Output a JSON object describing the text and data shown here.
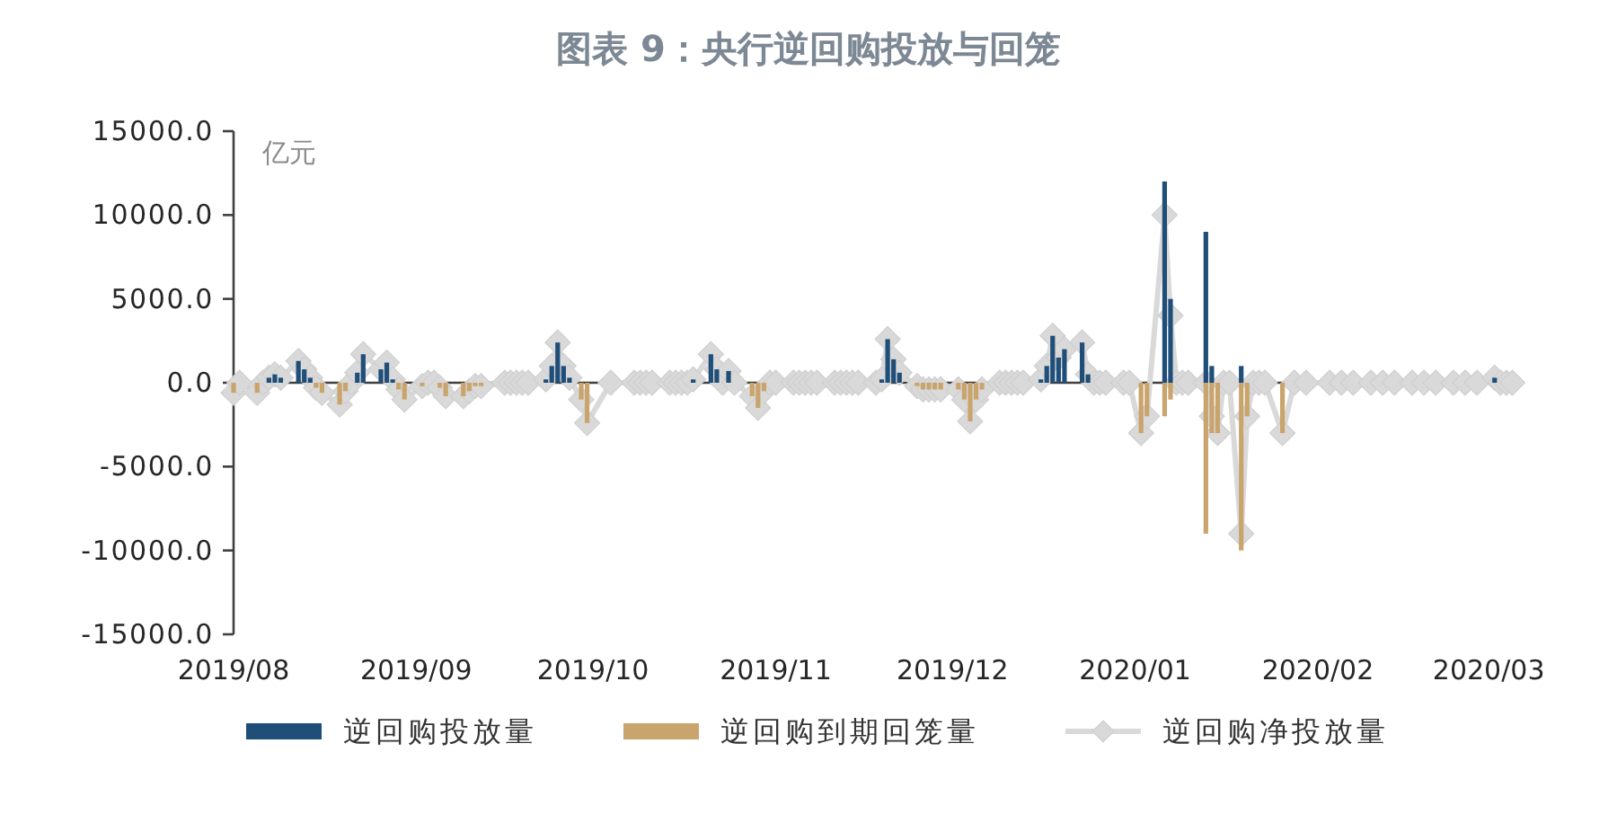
{
  "chart_data": {
    "type": "bar",
    "title": "图表 9：央行逆回购投放与回笼",
    "ylabel": "亿元",
    "xlim": [
      "2019-08-01",
      "2020-03-06"
    ],
    "xticks": [
      {
        "value": "2019-08",
        "label": "2019/08"
      },
      {
        "value": "2019-09",
        "label": "2019/09"
      },
      {
        "value": "2019-10",
        "label": "2019/10"
      },
      {
        "value": "2019-11",
        "label": "2019/11"
      },
      {
        "value": "2019-12",
        "label": "2019/12"
      },
      {
        "value": "2020-01",
        "label": "2020/01"
      },
      {
        "value": "2020-02",
        "label": "2020/02"
      },
      {
        "value": "2020-03",
        "label": "2020/03"
      }
    ],
    "ylim": [
      -15000,
      15000
    ],
    "yticks": [
      {
        "value": 15000,
        "label": "15000.0"
      },
      {
        "value": 10000,
        "label": "10000.0"
      },
      {
        "value": 5000,
        "label": "5000.0"
      },
      {
        "value": 0,
        "label": "0.0"
      },
      {
        "value": -5000,
        "label": "-5000.0"
      },
      {
        "value": -10000,
        "label": "-10000.0"
      },
      {
        "value": -15000,
        "label": "-15000.0"
      }
    ],
    "legend": "bottom",
    "marker": "diamond",
    "series": [
      {
        "name": "逆回购投放量",
        "color": "#1f4e79",
        "x": [
          "2019-08-07",
          "2019-08-08",
          "2019-08-09",
          "2019-08-12",
          "2019-08-13",
          "2019-08-14",
          "2019-08-22",
          "2019-08-23",
          "2019-08-26",
          "2019-08-27",
          "2019-08-28",
          "2019-09-23",
          "2019-09-24",
          "2019-09-25",
          "2019-09-26",
          "2019-09-27",
          "2019-10-18",
          "2019-10-21",
          "2019-10-22",
          "2019-10-24",
          "2019-11-19",
          "2019-11-20",
          "2019-11-21",
          "2019-11-22",
          "2019-12-16",
          "2019-12-17",
          "2019-12-18",
          "2019-12-19",
          "2019-12-20",
          "2019-12-23",
          "2019-12-24",
          "2020-01-06",
          "2020-01-07",
          "2020-01-13",
          "2020-01-14",
          "2020-01-19",
          "2020-03-02"
        ],
        "values": [
          300,
          500,
          300,
          1300,
          800,
          300,
          600,
          1700,
          800,
          1200,
          200,
          200,
          1000,
          2400,
          1000,
          300,
          200,
          1700,
          800,
          700,
          200,
          2600,
          1400,
          600,
          200,
          1000,
          2800,
          1500,
          2000,
          2400,
          500,
          12000,
          5000,
          9000,
          1000,
          1000,
          300
        ]
      },
      {
        "name": "逆回购到期回笼量",
        "color": "#c9a46c",
        "x": [
          "2019-08-01",
          "2019-08-05",
          "2019-08-15",
          "2019-08-16",
          "2019-08-19",
          "2019-08-20",
          "2019-08-29",
          "2019-08-30",
          "2019-09-02",
          "2019-09-05",
          "2019-09-06",
          "2019-09-09",
          "2019-09-10",
          "2019-09-11",
          "2019-09-12",
          "2019-09-29",
          "2019-09-30",
          "2019-10-28",
          "2019-10-29",
          "2019-10-30",
          "2019-11-25",
          "2019-11-26",
          "2019-11-27",
          "2019-11-28",
          "2019-11-29",
          "2019-12-02",
          "2019-12-03",
          "2019-12-04",
          "2019-12-05",
          "2019-12-06",
          "2020-01-02",
          "2020-01-03",
          "2020-01-06",
          "2020-01-07",
          "2020-01-13",
          "2020-01-14",
          "2020-01-15",
          "2020-01-19",
          "2020-01-20",
          "2020-01-26"
        ],
        "values": [
          -600,
          -600,
          -300,
          -600,
          -1300,
          -500,
          -400,
          -1000,
          -200,
          -300,
          -800,
          -800,
          -500,
          -200,
          -200,
          -1000,
          -2400,
          -800,
          -1500,
          -500,
          -200,
          -400,
          -400,
          -400,
          -400,
          -400,
          -1000,
          -2300,
          -1000,
          -400,
          -3000,
          -2000,
          -2000,
          -1000,
          -9000,
          -3000,
          -3000,
          -10000,
          -2000,
          -3000
        ]
      },
      {
        "name": "逆回购净投放量",
        "type": "line",
        "color": "#d9d9d9",
        "x": [
          "2019-08-01",
          "2019-08-02",
          "2019-08-05",
          "2019-08-06",
          "2019-08-07",
          "2019-08-08",
          "2019-08-09",
          "2019-08-12",
          "2019-08-13",
          "2019-08-14",
          "2019-08-15",
          "2019-08-16",
          "2019-08-19",
          "2019-08-20",
          "2019-08-21",
          "2019-08-22",
          "2019-08-23",
          "2019-08-26",
          "2019-08-27",
          "2019-08-28",
          "2019-08-29",
          "2019-08-30",
          "2019-09-02",
          "2019-09-03",
          "2019-09-04",
          "2019-09-05",
          "2019-09-06",
          "2019-09-09",
          "2019-09-10",
          "2019-09-11",
          "2019-09-12",
          "2019-09-16",
          "2019-09-17",
          "2019-09-18",
          "2019-09-19",
          "2019-09-20",
          "2019-09-23",
          "2019-09-24",
          "2019-09-25",
          "2019-09-26",
          "2019-09-27",
          "2019-09-29",
          "2019-09-30",
          "2019-10-04",
          "2019-10-08",
          "2019-10-09",
          "2019-10-10",
          "2019-10-11",
          "2019-10-14",
          "2019-10-15",
          "2019-10-16",
          "2019-10-17",
          "2019-10-18",
          "2019-10-21",
          "2019-10-22",
          "2019-10-23",
          "2019-10-24",
          "2019-10-25",
          "2019-10-28",
          "2019-10-29",
          "2019-10-30",
          "2019-10-31",
          "2019-11-01",
          "2019-11-04",
          "2019-11-05",
          "2019-11-06",
          "2019-11-07",
          "2019-11-08",
          "2019-11-11",
          "2019-11-12",
          "2019-11-13",
          "2019-11-14",
          "2019-11-15",
          "2019-11-18",
          "2019-11-19",
          "2019-11-20",
          "2019-11-21",
          "2019-11-22",
          "2019-11-25",
          "2019-11-26",
          "2019-11-27",
          "2019-11-28",
          "2019-11-29",
          "2019-12-02",
          "2019-12-03",
          "2019-12-04",
          "2019-12-05",
          "2019-12-06",
          "2019-12-09",
          "2019-12-10",
          "2019-12-11",
          "2019-12-12",
          "2019-12-13",
          "2019-12-16",
          "2019-12-17",
          "2019-12-18",
          "2019-12-19",
          "2019-12-20",
          "2019-12-23",
          "2019-12-24",
          "2019-12-25",
          "2019-12-26",
          "2019-12-27",
          "2019-12-30",
          "2019-12-31",
          "2020-01-02",
          "2020-01-03",
          "2020-01-06",
          "2020-01-07",
          "2020-01-08",
          "2020-01-09",
          "2020-01-10",
          "2020-01-13",
          "2020-01-14",
          "2020-01-15",
          "2020-01-16",
          "2020-01-17",
          "2020-01-19",
          "2020-01-20",
          "2020-01-21",
          "2020-01-22",
          "2020-01-23",
          "2020-01-26",
          "2020-01-28",
          "2020-01-30",
          "2020-02-03",
          "2020-02-05",
          "2020-02-07",
          "2020-02-10",
          "2020-02-12",
          "2020-02-14",
          "2020-02-17",
          "2020-02-19",
          "2020-02-21",
          "2020-02-24",
          "2020-02-26",
          "2020-02-28",
          "2020-03-02",
          "2020-03-03",
          "2020-03-04",
          "2020-03-05"
        ],
        "values": [
          -600,
          0,
          -600,
          0,
          300,
          500,
          300,
          1300,
          800,
          300,
          -300,
          -600,
          -1300,
          -500,
          0,
          600,
          1700,
          800,
          1200,
          200,
          -400,
          -1000,
          -200,
          0,
          0,
          -300,
          -800,
          -800,
          -500,
          -200,
          -200,
          0,
          0,
          0,
          0,
          0,
          200,
          1000,
          2400,
          1000,
          300,
          -1000,
          -2400,
          0,
          0,
          0,
          0,
          0,
          0,
          0,
          0,
          0,
          200,
          1700,
          800,
          0,
          700,
          0,
          -800,
          -1500,
          -500,
          0,
          0,
          0,
          0,
          0,
          0,
          0,
          0,
          0,
          0,
          0,
          0,
          0,
          200,
          2600,
          1400,
          600,
          -200,
          -400,
          -400,
          -400,
          -400,
          -400,
          -1000,
          -2300,
          -1000,
          -400,
          0,
          0,
          0,
          0,
          0,
          200,
          1000,
          2800,
          1500,
          2000,
          2400,
          500,
          0,
          0,
          0,
          0,
          0,
          -3000,
          -2000,
          10000,
          4000,
          0,
          0,
          0,
          0,
          -2000,
          -3000,
          0,
          0,
          -9000,
          -2000,
          0,
          0,
          0,
          -3000,
          0,
          0,
          0,
          0,
          0,
          0,
          0,
          0,
          0,
          0,
          0,
          0,
          0,
          0,
          300,
          0,
          0,
          0
        ]
      }
    ]
  }
}
